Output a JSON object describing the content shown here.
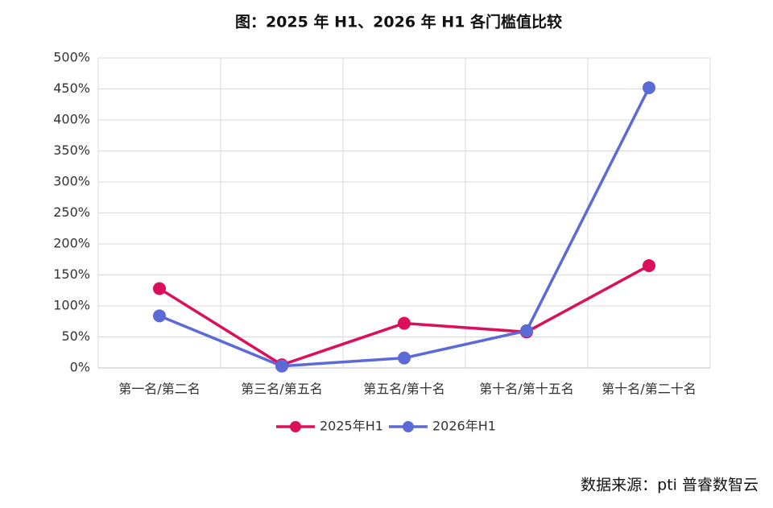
{
  "chart_data": {
    "type": "line",
    "title": "图：2025 年 H1、2026 年 H1 各门槛值比较",
    "categories": [
      "第一名/第二名",
      "第三名/第五名",
      "第五名/第十名",
      "第十名/第十五名",
      "第十名/第二十名"
    ],
    "series": [
      {
        "name": "2025年H1",
        "color": "#dc0f5a",
        "values": [
          128,
          5,
          72,
          58,
          165
        ]
      },
      {
        "name": "2026年H1",
        "color": "#5b6ad6",
        "values": [
          84,
          3,
          16,
          60,
          452
        ]
      }
    ],
    "ylim": [
      0,
      500
    ],
    "yticks": [
      {
        "value": 0,
        "label": "0%"
      },
      {
        "value": 50,
        "label": "50%"
      },
      {
        "value": 100,
        "label": "100%"
      },
      {
        "value": 150,
        "label": "150%"
      },
      {
        "value": 200,
        "label": "200%"
      },
      {
        "value": 250,
        "label": "250%"
      },
      {
        "value": 300,
        "label": "300%"
      },
      {
        "value": 350,
        "label": "350%"
      },
      {
        "value": 400,
        "label": "400%"
      },
      {
        "value": 450,
        "label": "450%"
      },
      {
        "value": 500,
        "label": "500%"
      }
    ],
    "grid": true,
    "legend": "bottom",
    "source": "数据来源：pti 普睿数智云"
  }
}
